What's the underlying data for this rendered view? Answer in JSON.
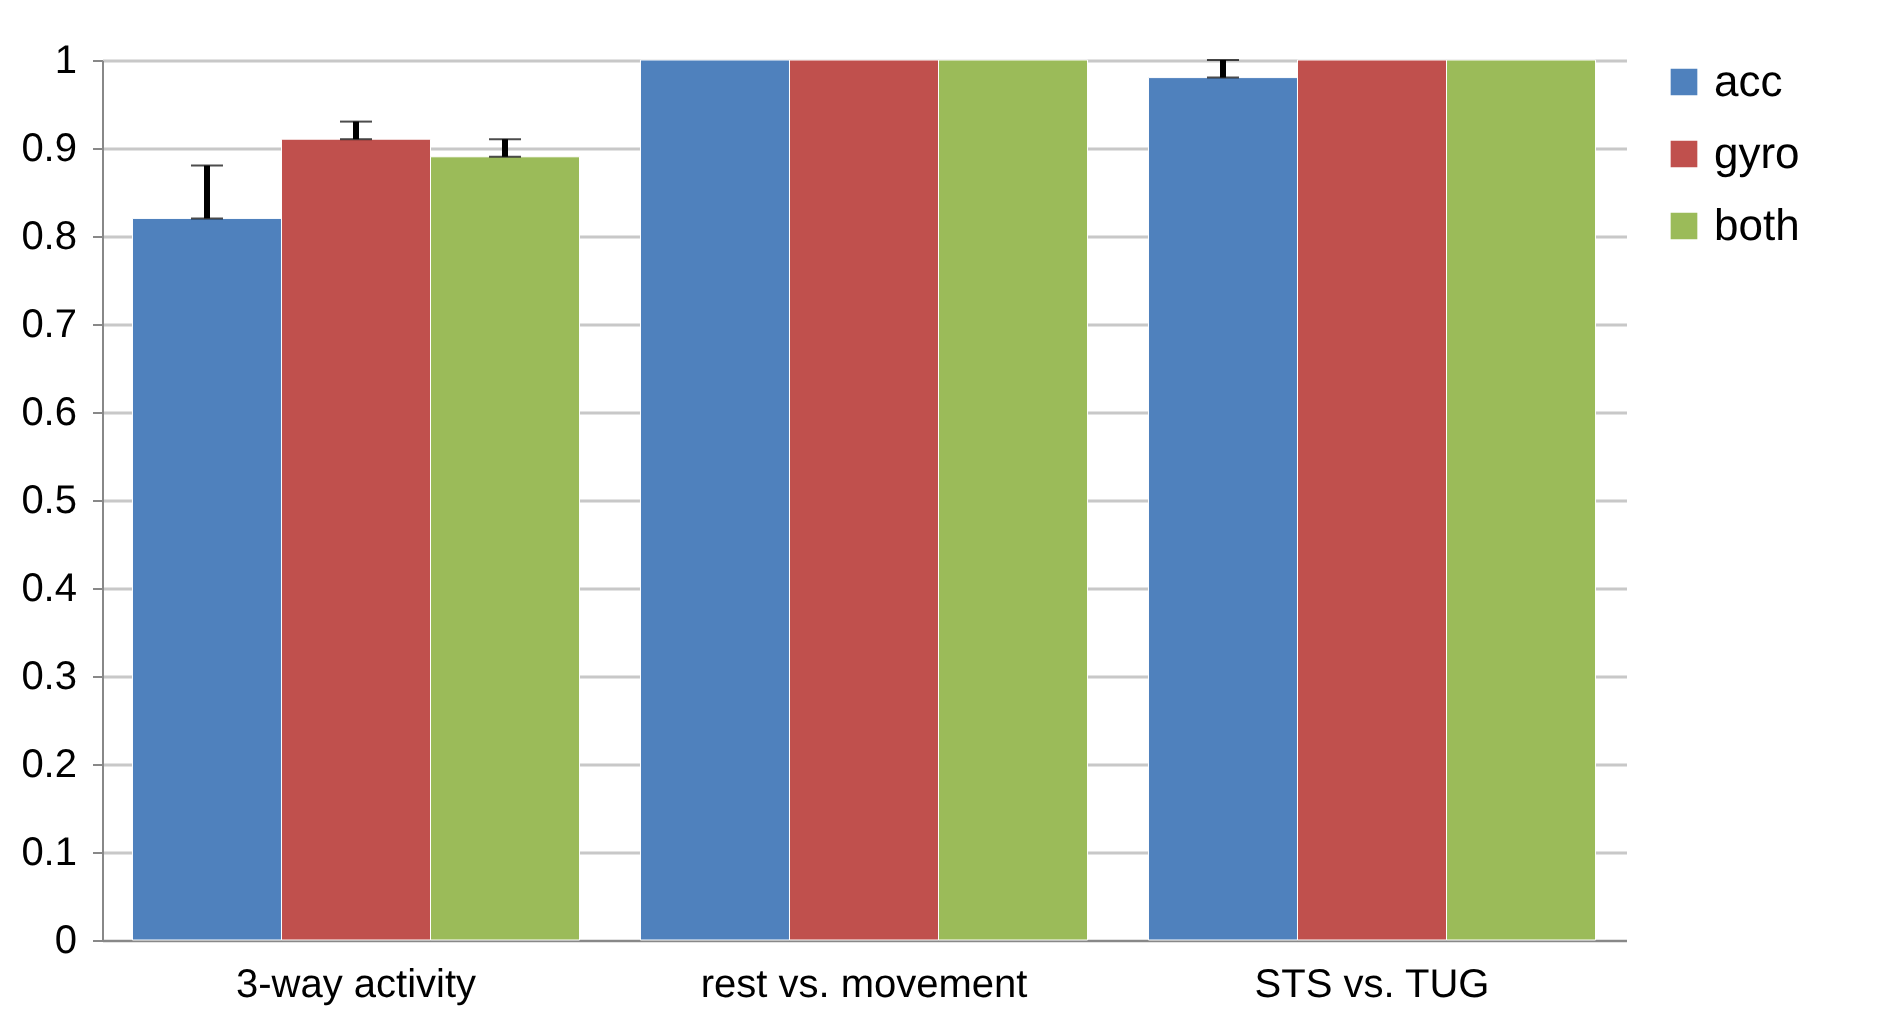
{
  "chart_data": {
    "type": "bar",
    "categories": [
      "3-way activity",
      "rest vs. movement",
      "STS vs. TUG"
    ],
    "series": [
      {
        "name": "acc",
        "color": "#4f81bd",
        "values": [
          0.82,
          1,
          0.98
        ],
        "errors": [
          [
            0.82,
            0.88
          ],
          null,
          [
            0.98,
            1
          ]
        ]
      },
      {
        "name": "gyro",
        "color": "#c0504d",
        "values": [
          0.91,
          1,
          1
        ],
        "errors": [
          [
            0.91,
            0.93
          ],
          null,
          null
        ]
      },
      {
        "name": "both",
        "color": "#9bbb59",
        "values": [
          0.89,
          1,
          1
        ],
        "errors": [
          [
            0.89,
            0.91
          ],
          null,
          null
        ]
      }
    ],
    "ylim": [
      0,
      1
    ],
    "yticks": [
      0,
      {
        "value": 0.1,
        "label": "0.1"
      },
      {
        "value": 0.2,
        "label": "0.2"
      },
      {
        "value": 0.3,
        "label": "0.3"
      },
      {
        "value": 0.4,
        "label": "0.4"
      },
      {
        "value": 0.5,
        "label": "0.5"
      },
      {
        "value": 0.6,
        "label": "0.6"
      },
      {
        "value": 0.7,
        "label": "0.7"
      },
      {
        "value": 0.8,
        "label": "0.8"
      },
      {
        "value": 0.9,
        "label": "0.9"
      },
      1
    ],
    "grid": "y",
    "legend": "right"
  }
}
